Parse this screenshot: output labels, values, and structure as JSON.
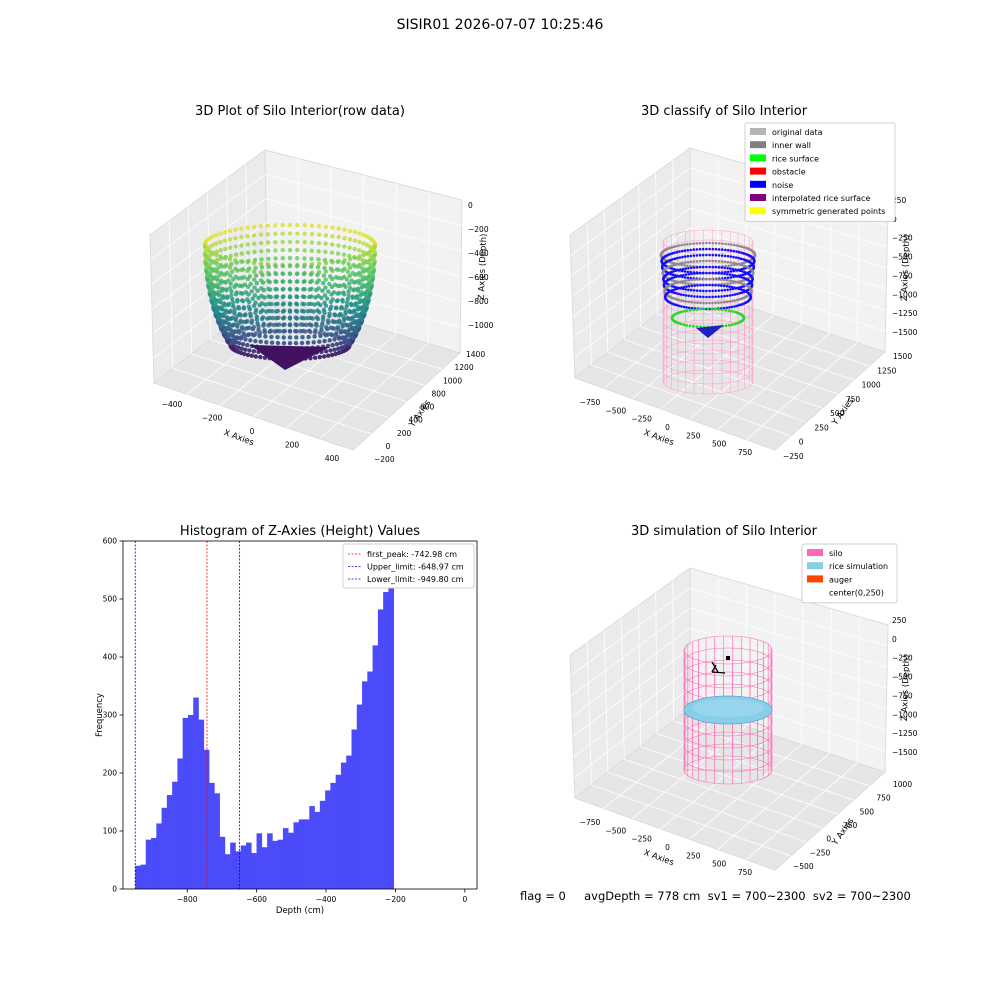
{
  "suptitle": "SISIR01 2026-07-07 10:25:46",
  "colors": {
    "histogram_bar": "#4b4bfa",
    "first_peak_line": "#ff0000",
    "limit_lines": "#0000cc",
    "silo": "#ff69b4",
    "rice_simulation": "#87ceeb",
    "auger": "#ff4500"
  },
  "panel1": {
    "title": "3D Plot of Silo Interior(row data)",
    "xlabel": "X Axies",
    "ylabel": "Y Axies",
    "zlabel": "Z Axies (Depth)",
    "xticks": [
      "−400",
      "−200",
      "0",
      "200",
      "400"
    ],
    "yticks": [
      "−200",
      "0",
      "200",
      "400",
      "600",
      "800",
      "1000",
      "1200",
      "1400"
    ],
    "zticks": [
      "0",
      "−200",
      "−400",
      "−600",
      "−800",
      "−1000"
    ]
  },
  "panel2": {
    "title": "3D classify of Silo Interior",
    "xlabel": "X Axies",
    "ylabel": "Y Axies",
    "zlabel": "Z Axies (Depth)",
    "xticks": [
      "−750",
      "−500",
      "−250",
      "0",
      "250",
      "500",
      "750"
    ],
    "yticks": [
      "−250",
      "0",
      "250",
      "500",
      "750",
      "1000",
      "1250",
      "1500"
    ],
    "zticks": [
      "250",
      "0",
      "−250",
      "−500",
      "−750",
      "−1000",
      "−1250",
      "−1500"
    ],
    "legend": [
      {
        "label": "original data",
        "color": "#b4b4b4"
      },
      {
        "label": "inner wall",
        "color": "#808080"
      },
      {
        "label": "rice surface",
        "color": "#00ff00"
      },
      {
        "label": "obstacle",
        "color": "#ff0000"
      },
      {
        "label": "noise",
        "color": "#0000ff"
      },
      {
        "label": "interpolated rice surface",
        "color": "#800080"
      },
      {
        "label": "symmetric generated points",
        "color": "#ffff00"
      }
    ]
  },
  "panel4": {
    "title": "3D simulation of Silo Interior",
    "xlabel": "X Axies",
    "ylabel": "Y Axies",
    "zlabel": "Z Axies (Depth)",
    "xticks": [
      "−750",
      "−500",
      "−250",
      "0",
      "250",
      "500",
      "750"
    ],
    "yticks": [
      "−500",
      "−250",
      "0",
      "250",
      "500",
      "750",
      "1000"
    ],
    "zticks": [
      "250",
      "0",
      "−250",
      "−500",
      "−750",
      "−1000",
      "−1250",
      "−1500"
    ],
    "legend": [
      {
        "label": "silo",
        "color": "#ff69b4"
      },
      {
        "label": "rice simulation",
        "color": "#87ceeb"
      },
      {
        "label": "auger",
        "color": "#ff4500"
      },
      {
        "label": "center(0,250)",
        "color": "none"
      }
    ]
  },
  "status": "flag = 0     avgDepth = 778 cm  sv1 = 700~2300  sv2 = 700~2300",
  "chart_data": [
    {
      "type": "bar",
      "title": "Histogram of Z-Axies (Height) Values",
      "xlabel": "Depth (cm)",
      "ylabel": "Frequency",
      "xlim": [
        -985,
        35
      ],
      "ylim": [
        0,
        600
      ],
      "xticks": [
        -800,
        -600,
        -400,
        -200,
        0
      ],
      "xtick_labels": [
        "−800",
        "−600",
        "−400",
        "−200",
        "0"
      ],
      "yticks": [
        0,
        100,
        200,
        300,
        400,
        500,
        600
      ],
      "bin_start": -949.8,
      "bin_width": 15.2,
      "values": [
        40,
        42,
        85,
        88,
        113,
        140,
        162,
        185,
        225,
        295,
        300,
        330,
        292,
        240,
        183,
        165,
        90,
        60,
        80,
        65,
        75,
        80,
        62,
        96,
        72,
        96,
        83,
        85,
        105,
        97,
        115,
        120,
        120,
        143,
        133,
        152,
        170,
        183,
        197,
        218,
        230,
        275,
        318,
        358,
        375,
        420,
        482,
        512,
        570
      ],
      "vlines": [
        {
          "label": "first_peak: -742.98 cm",
          "x": -742.98,
          "color": "#ff0000"
        },
        {
          "label": "Upper_limit: -648.97 cm",
          "x": -648.97,
          "color": "#0000cc"
        },
        {
          "label": "Lower_limit: -949.80 cm",
          "x": -949.8,
          "color": "#0000cc"
        }
      ],
      "legend": "top-right"
    }
  ]
}
